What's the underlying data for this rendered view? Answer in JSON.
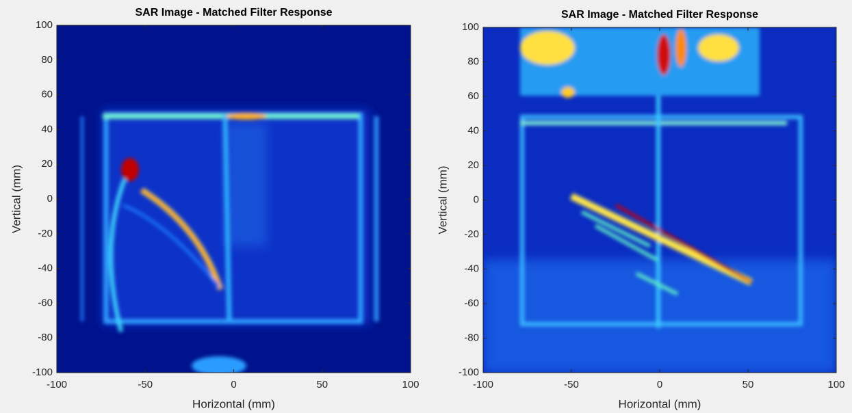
{
  "chart_data": [
    {
      "type": "image",
      "title": "SAR Image - Matched Filter Response",
      "x_label": "Horizontal (mm)",
      "y_label": "Vertical (mm)",
      "xlim": [
        -100,
        100
      ],
      "ylim": [
        -100,
        100
      ],
      "xticks": [
        -100,
        -50,
        0,
        50,
        100
      ],
      "yticks": [
        -100,
        -80,
        -60,
        -40,
        -20,
        0,
        20,
        40,
        60,
        80,
        100
      ]
    },
    {
      "type": "image",
      "title": "SAR Image - Matched Filter Response",
      "x_label": "Horizontal (mm)",
      "y_label": "Vertical (mm)",
      "xlim": [
        -100,
        100
      ],
      "ylim": [
        -100,
        100
      ],
      "xticks": [
        -100,
        -50,
        0,
        50,
        100
      ],
      "yticks": [
        -100,
        -80,
        -60,
        -40,
        -20,
        0,
        20,
        40,
        60,
        80,
        100
      ]
    }
  ]
}
